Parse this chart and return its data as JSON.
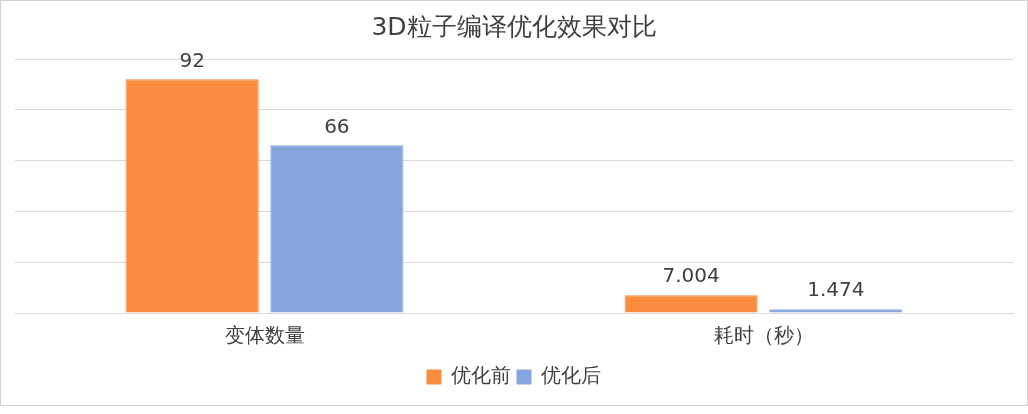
{
  "chart_data": {
    "type": "bar",
    "title": "3D粒子编译优化效果对比",
    "categories": [
      "变体数量",
      "耗时（秒）"
    ],
    "series": [
      {
        "name": "优化前",
        "color": "#f98c3e",
        "values": [
          92,
          7.004
        ]
      },
      {
        "name": "优化后",
        "color": "#86a5dd",
        "values": [
          66,
          1.474
        ]
      }
    ],
    "ylim": [
      0,
      100
    ],
    "yticks": [
      0,
      20,
      40,
      60,
      80,
      100
    ],
    "grid": "y",
    "tick_labels": "x",
    "legend": "bottom",
    "data_labels": true
  }
}
